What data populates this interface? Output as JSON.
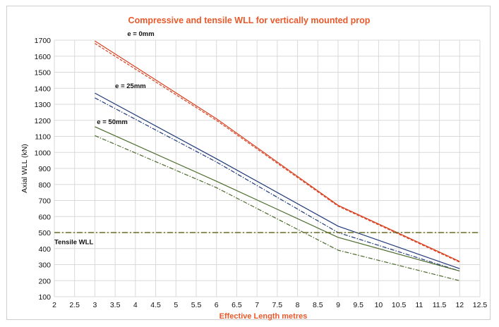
{
  "chart_data": {
    "type": "line",
    "title": "Compressive and tensile WLL for vertically mounted prop",
    "xlabel": "Effective Length metres",
    "ylabel": "Axial WLL (kN)",
    "xlim": [
      2,
      12.5
    ],
    "ylim": [
      100,
      1700
    ],
    "xticks": [
      "2",
      "2.5",
      "3",
      "3.5",
      "4",
      "4.5",
      "5",
      "5.5",
      "6",
      "6.5",
      "7",
      "7.5",
      "8",
      "8.5",
      "9",
      "9.5",
      "10",
      "10.5",
      "11",
      "11.5",
      "12",
      "12.5"
    ],
    "yticks": [
      "100",
      "200",
      "300",
      "400",
      "500",
      "600",
      "700",
      "800",
      "900",
      "1000",
      "1100",
      "1200",
      "1300",
      "1400",
      "1500",
      "1600",
      "1700"
    ],
    "grid": "vertical and horizontal",
    "legend": "none",
    "series": [
      {
        "group": "e = 0mm",
        "style": "solid",
        "color": "#d9401f",
        "x": [
          3,
          6,
          9,
          12
        ],
        "y": [
          1695,
          1210,
          670,
          320
        ]
      },
      {
        "group": "e = 0mm",
        "style": "dashed",
        "color": "#d9401f",
        "x": [
          3,
          6,
          9,
          12
        ],
        "y": [
          1680,
          1200,
          665,
          315
        ]
      },
      {
        "group": "e = 25mm",
        "style": "solid",
        "color": "#1f3a78",
        "x": [
          3,
          6,
          9,
          12
        ],
        "y": [
          1370,
          960,
          540,
          275
        ]
      },
      {
        "group": "e = 25mm",
        "style": "dashdot",
        "color": "#1f3a78",
        "x": [
          3,
          6,
          9,
          12
        ],
        "y": [
          1340,
          940,
          500,
          260
        ]
      },
      {
        "group": "e = 50mm",
        "style": "solid",
        "color": "#4d6b2c",
        "x": [
          3,
          6,
          9,
          12
        ],
        "y": [
          1160,
          820,
          470,
          260
        ]
      },
      {
        "group": "e = 50mm",
        "style": "dashdot",
        "color": "#4d6b2c",
        "x": [
          3,
          6,
          9,
          12
        ],
        "y": [
          1105,
          780,
          390,
          200
        ]
      }
    ],
    "reference_line": {
      "label": "Tensile WLL",
      "y": 500,
      "style": "dashdot",
      "color": "#6b6b23"
    },
    "annotations": [
      {
        "text": "e = 0mm",
        "x": 3.8,
        "y": 1745
      },
      {
        "text": "e = 25mm",
        "x": 3.5,
        "y": 1418
      },
      {
        "text": "e = 50mm",
        "x": 3.05,
        "y": 1195
      },
      {
        "text": "Tensile WLL",
        "x": 2.0,
        "y": 445
      }
    ]
  }
}
